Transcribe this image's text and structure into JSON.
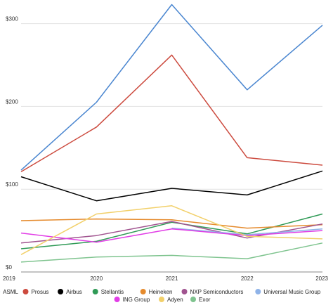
{
  "chart_data": {
    "type": "line",
    "x": [
      "2019",
      "2020",
      "2021",
      "2022",
      "2023"
    ],
    "ylim": [
      0,
      320
    ],
    "y_ticks": [
      0,
      100,
      200,
      300
    ],
    "y_tick_labels": [
      "$0",
      "$100",
      "$200",
      "$300"
    ],
    "grid": "horizontal",
    "legend_position": "bottom",
    "series": [
      {
        "name": "ASML",
        "color": "#4a86d0",
        "values": [
          123,
          205,
          323,
          220,
          298
        ]
      },
      {
        "name": "Prosus",
        "color": "#cc4a3e",
        "values": [
          121,
          175,
          262,
          138,
          129
        ]
      },
      {
        "name": "Airbus",
        "color": "#000000",
        "values": [
          115,
          86,
          101,
          93,
          122
        ]
      },
      {
        "name": "Stellantis",
        "color": "#2f9a56",
        "values": [
          28,
          37,
          60,
          46,
          70
        ]
      },
      {
        "name": "Heineken",
        "color": "#e58a2c",
        "values": [
          62,
          64,
          63,
          53,
          57
        ]
      },
      {
        "name": "NXP Semiconductors",
        "color": "#a0538f",
        "values": [
          35,
          44,
          61,
          41,
          58
        ]
      },
      {
        "name": "Universal Music Group",
        "color": "#8fb3e8",
        "values": [
          null,
          null,
          53,
          45,
          52
        ]
      },
      {
        "name": "ING Group",
        "color": "#e13de6",
        "values": [
          47,
          36,
          52,
          44,
          50
        ]
      },
      {
        "name": "Adyen",
        "color": "#f2d06a",
        "values": [
          21,
          70,
          80,
          43,
          40
        ]
      },
      {
        "name": "Exor",
        "color": "#7fc48f",
        "values": [
          12,
          18,
          20,
          16,
          35
        ]
      }
    ]
  }
}
